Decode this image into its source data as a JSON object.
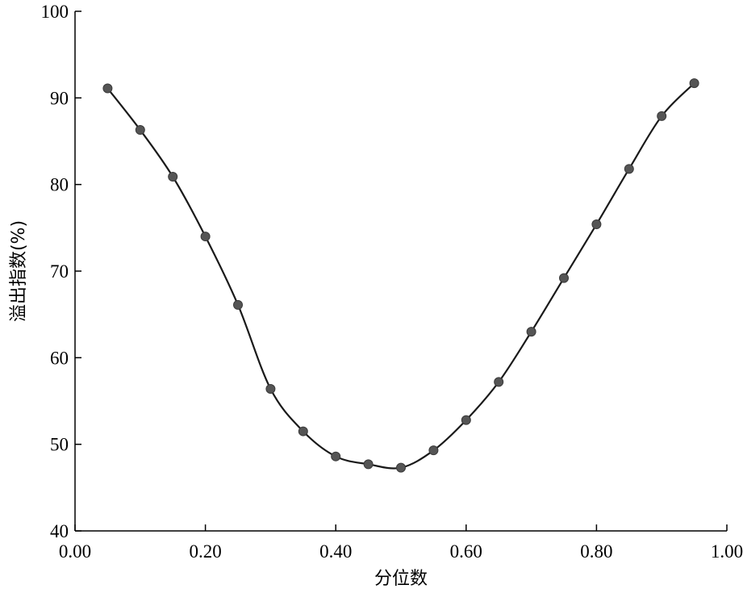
{
  "chart_data": {
    "type": "line",
    "title": "",
    "xlabel": "分位数",
    "ylabel": "溢出指数(%)",
    "xlim": [
      0.0,
      1.0
    ],
    "ylim": [
      40,
      100
    ],
    "x_ticks": [
      0.0,
      0.2,
      0.4,
      0.6,
      0.8,
      1.0
    ],
    "x_tick_labels": [
      "0.00",
      "0.20",
      "0.40",
      "0.60",
      "0.80",
      "1.00"
    ],
    "y_ticks": [
      40,
      50,
      60,
      70,
      80,
      90,
      100
    ],
    "y_tick_labels": [
      "40",
      "50",
      "60",
      "70",
      "80",
      "90",
      "100"
    ],
    "grid": false,
    "legend": "none",
    "colors": {
      "line": "#1a1a1a",
      "marker": "#555555",
      "axis": "#000000"
    },
    "series": [
      {
        "x": [
          0.05,
          0.1,
          0.15,
          0.2,
          0.25,
          0.3,
          0.35,
          0.4,
          0.45,
          0.5,
          0.55,
          0.6,
          0.65,
          0.7,
          0.75,
          0.8,
          0.85,
          0.9,
          0.95
        ],
        "values": [
          91.1,
          86.3,
          80.9,
          74.0,
          66.1,
          56.4,
          51.5,
          48.6,
          47.7,
          47.3,
          49.3,
          52.8,
          57.2,
          63.0,
          69.2,
          75.4,
          81.8,
          87.9,
          91.7
        ]
      }
    ]
  }
}
